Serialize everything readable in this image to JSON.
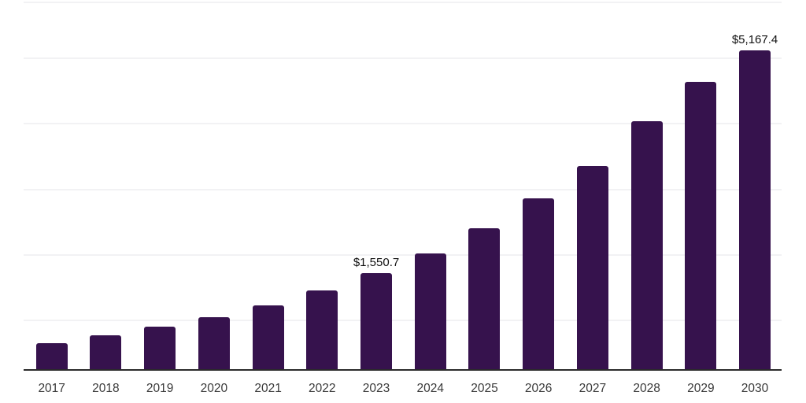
{
  "chart_data": {
    "type": "bar",
    "title": "",
    "xlabel": "",
    "ylabel": "",
    "categories": [
      "2017",
      "2018",
      "2019",
      "2020",
      "2021",
      "2022",
      "2023",
      "2024",
      "2025",
      "2026",
      "2027",
      "2028",
      "2029",
      "2030"
    ],
    "values": [
      420,
      545,
      685,
      840,
      1030,
      1270,
      1550.7,
      1880,
      2285,
      2770,
      3295,
      4015,
      4655,
      5167.4
    ],
    "data_labels": [
      null,
      null,
      null,
      null,
      null,
      null,
      "$1,550.7",
      null,
      null,
      null,
      null,
      null,
      null,
      "$5,167.4"
    ],
    "labeled_points": [
      {
        "category": "2023",
        "label": "$1,550.7",
        "value": 1550.7
      },
      {
        "category": "2030",
        "label": "$5,167.4",
        "value": 5167.4
      }
    ],
    "ylim": [
      0,
      5900
    ],
    "grid": true,
    "legend": false,
    "y_axis_ticks_visible": false,
    "colors": {
      "bar": "#36124d",
      "axis": "#2b2b2b",
      "gridline": "#f2f2f4",
      "data_label": "#111111",
      "tick_label": "#3a3a3a",
      "background": "#ffffff"
    }
  }
}
